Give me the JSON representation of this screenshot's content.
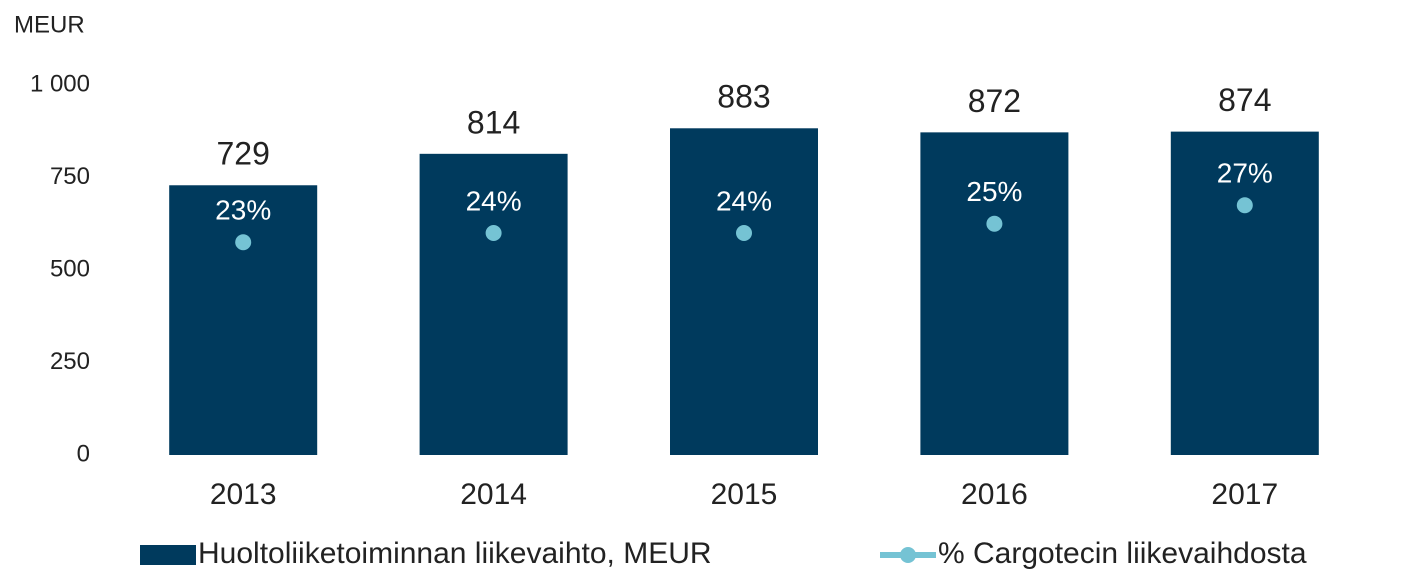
{
  "chart_data": {
    "type": "bar",
    "y_axis_label": "MEUR",
    "categories": [
      "2013",
      "2014",
      "2015",
      "2016",
      "2017"
    ],
    "series": [
      {
        "name": "Huoltoliiketoiminnan liikevaihto, MEUR",
        "color": "#003a5d",
        "values": [
          729,
          814,
          883,
          872,
          874
        ]
      },
      {
        "name": "% Cargotecin liikevaihdosta",
        "color": "#75c3d4",
        "type": "line",
        "axis": "y2",
        "values": [
          23,
          24,
          24,
          25,
          27
        ],
        "value_labels": [
          "23%",
          "24%",
          "24%",
          "25%",
          "27%"
        ]
      }
    ],
    "ylim": [
      0,
      1000
    ],
    "yticks": [
      0,
      250,
      500,
      750,
      {
        "value": 1000,
        "label": "1 000"
      }
    ],
    "y2lim": [
      0,
      40
    ],
    "grid": false
  }
}
